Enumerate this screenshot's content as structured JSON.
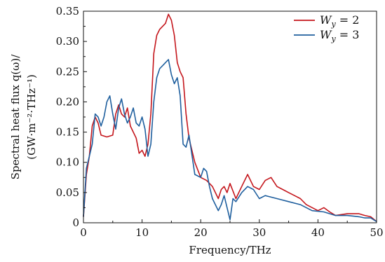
{
  "chart_data": {
    "type": "line",
    "xlabel": "Frequency/THz",
    "ylabel_line1": "Spectral heat flux q(ω)/",
    "ylabel_line2": "(GW·m⁻²·THz⁻¹)",
    "xlim": [
      0,
      50
    ],
    "ylim": [
      0,
      0.35
    ],
    "xticks": [
      "0",
      "10",
      "20",
      "30",
      "40",
      "50"
    ],
    "yticks": [
      "0",
      "0.05",
      "0.10",
      "0.15",
      "0.20",
      "0.25",
      "0.30",
      "0.35"
    ],
    "legend_position": "top-right",
    "grid": false,
    "colors": {
      "wy2": "#c4161c",
      "wy3": "#1f5f9e"
    },
    "series": [
      {
        "name": "W_y = 2",
        "legend_label": "W",
        "legend_sub": "y",
        "legend_value": " = 2",
        "color": "#c4161c",
        "x": [
          0,
          0.5,
          1,
          1.5,
          2,
          2.5,
          3,
          4,
          5,
          5.5,
          6,
          6.5,
          7,
          7.5,
          8,
          8.5,
          9,
          9.5,
          10,
          10.5,
          11,
          11.5,
          12,
          12.5,
          13,
          13.5,
          14,
          14.5,
          15,
          15.5,
          16,
          16.5,
          17,
          17.5,
          18,
          19,
          20,
          21,
          22,
          23,
          23.5,
          24,
          24.5,
          25,
          26,
          27,
          28,
          29,
          30,
          31,
          32,
          33,
          34,
          35,
          36,
          37,
          38,
          40,
          41,
          42,
          43,
          45,
          47,
          48,
          49,
          50
        ],
        "y": [
          0.01,
          0.08,
          0.11,
          0.16,
          0.175,
          0.165,
          0.145,
          0.142,
          0.145,
          0.18,
          0.195,
          0.18,
          0.175,
          0.19,
          0.16,
          0.15,
          0.14,
          0.115,
          0.12,
          0.11,
          0.13,
          0.18,
          0.28,
          0.31,
          0.32,
          0.325,
          0.33,
          0.345,
          0.335,
          0.31,
          0.265,
          0.25,
          0.24,
          0.18,
          0.14,
          0.1,
          0.075,
          0.07,
          0.06,
          0.04,
          0.055,
          0.06,
          0.05,
          0.065,
          0.04,
          0.06,
          0.08,
          0.06,
          0.055,
          0.07,
          0.075,
          0.06,
          0.055,
          0.05,
          0.045,
          0.04,
          0.03,
          0.02,
          0.025,
          0.018,
          0.012,
          0.015,
          0.015,
          0.012,
          0.01,
          0.002
        ]
      },
      {
        "name": "W_y = 3",
        "legend_label": "W",
        "legend_sub": "y",
        "legend_value": " = 3",
        "color": "#1f5f9e",
        "x": [
          0,
          0.5,
          1,
          1.5,
          2,
          2.5,
          3,
          3.5,
          4,
          4.5,
          5,
          5.5,
          6,
          6.5,
          7,
          7.5,
          8,
          8.5,
          9,
          9.5,
          10,
          10.5,
          11,
          11.5,
          12,
          12.5,
          13,
          13.5,
          14,
          14.5,
          15,
          15.5,
          16,
          16.5,
          17,
          17.5,
          18,
          19,
          20,
          20.5,
          21,
          21.5,
          22,
          22.5,
          23,
          23.5,
          24,
          24.5,
          25,
          25.5,
          26,
          27,
          28,
          29,
          30,
          31,
          33,
          35,
          37,
          39,
          41,
          43,
          45,
          47,
          48,
          49,
          50
        ],
        "y": [
          0.01,
          0.09,
          0.11,
          0.13,
          0.18,
          0.175,
          0.16,
          0.175,
          0.2,
          0.21,
          0.18,
          0.155,
          0.19,
          0.205,
          0.18,
          0.165,
          0.175,
          0.19,
          0.165,
          0.16,
          0.175,
          0.155,
          0.11,
          0.13,
          0.2,
          0.24,
          0.255,
          0.26,
          0.265,
          0.27,
          0.245,
          0.23,
          0.24,
          0.21,
          0.13,
          0.125,
          0.145,
          0.08,
          0.075,
          0.09,
          0.085,
          0.06,
          0.04,
          0.03,
          0.02,
          0.03,
          0.045,
          0.025,
          0.005,
          0.04,
          0.035,
          0.05,
          0.06,
          0.055,
          0.04,
          0.045,
          0.04,
          0.035,
          0.03,
          0.02,
          0.018,
          0.012,
          0.012,
          0.01,
          0.008,
          0.008,
          0.002
        ]
      }
    ]
  }
}
